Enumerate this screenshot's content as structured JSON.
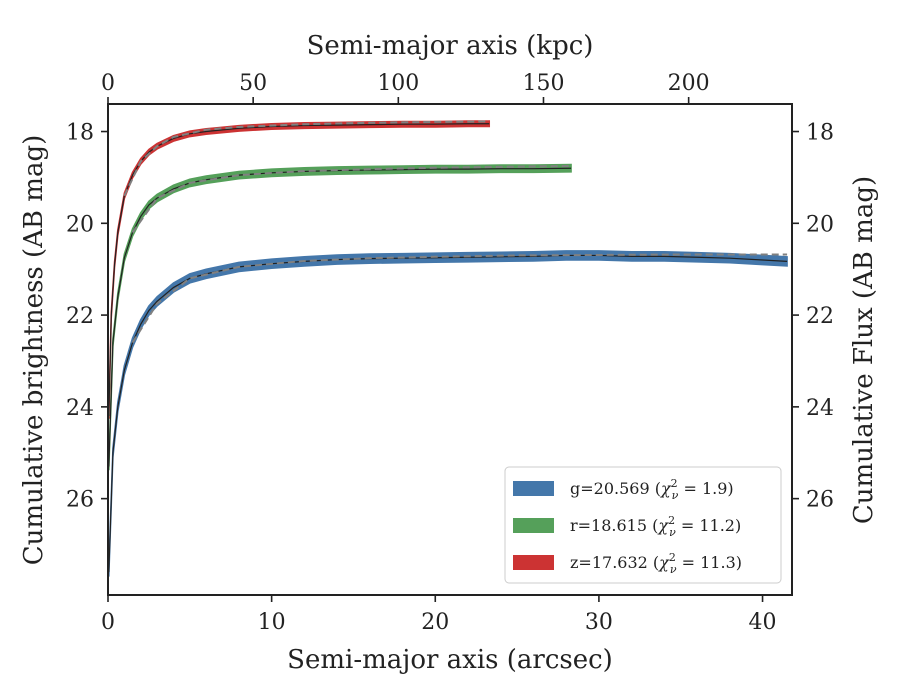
{
  "chart_data": {
    "type": "line",
    "xlabel": "Semi-major axis (arcsec)",
    "x2label": "Semi-major axis (kpc)",
    "ylabel": "Cumulative brightness (AB mag)",
    "y2label": "Cumulative Flux (AB mag)",
    "xlim": [
      0,
      41.8
    ],
    "x2lim": [
      0,
      235.6
    ],
    "ylim": [
      28.1,
      17.4
    ],
    "x_ticks": [
      0,
      10,
      20,
      30,
      40
    ],
    "x2_ticks": [
      0,
      50,
      100,
      150,
      200
    ],
    "y_ticks": [
      18,
      20,
      22,
      24,
      26
    ],
    "grid": false,
    "legend_position": "lower-right",
    "colors": {
      "axis": "#222222",
      "model": "#808080",
      "fit_line": "#222222"
    },
    "series": [
      {
        "name": "g=20.569 ($\\chi^2_\\nu = 1.9$)",
        "band": "g",
        "legend_main": "g=20.569 (",
        "legend_sym": "χ",
        "legend_sup": "2",
        "legend_sub": "ν",
        "legend_tail": " = 1.9)",
        "color": "#4477aa",
        "band_width_mag": 0.1,
        "x": [
          0.05,
          0.3,
          0.6,
          1.0,
          1.5,
          2.0,
          2.5,
          3.0,
          4.0,
          5.0,
          6.0,
          8.0,
          10.0,
          12.0,
          14.0,
          16.0,
          18.0,
          20.0,
          22.0,
          24.0,
          26.0,
          28.0,
          30.0,
          32.0,
          34.0,
          36.0,
          38.0,
          40.0,
          41.5
        ],
        "y": [
          27.6,
          25.0,
          24.0,
          23.2,
          22.6,
          22.2,
          21.9,
          21.7,
          21.4,
          21.2,
          21.1,
          20.95,
          20.88,
          20.83,
          20.79,
          20.77,
          20.76,
          20.75,
          20.74,
          20.73,
          20.72,
          20.7,
          20.7,
          20.72,
          20.72,
          20.74,
          20.76,
          20.8,
          20.83
        ],
        "model_x": [
          1.5,
          3,
          5,
          8,
          12,
          16,
          20,
          25,
          30,
          35,
          40,
          41.5
        ],
        "model_y": [
          22.6,
          21.75,
          21.2,
          20.95,
          20.82,
          20.76,
          20.73,
          20.7,
          20.69,
          20.68,
          20.68,
          20.68
        ]
      },
      {
        "name": "r=18.615 ($\\chi^2_\\nu = 11.2$)",
        "band": "r",
        "legend_main": "r=18.615 (",
        "legend_sym": "χ",
        "legend_sup": "2",
        "legend_sub": "ν",
        "legend_tail": " = 11.2)",
        "color": "#55a05a",
        "band_width_mag": 0.08,
        "x": [
          0.05,
          0.3,
          0.6,
          1.0,
          1.5,
          2.0,
          2.5,
          3.0,
          4.0,
          5.0,
          6.0,
          8.0,
          10.0,
          12.0,
          14.0,
          16.0,
          18.0,
          20.0,
          22.0,
          24.0,
          26.0,
          28.3
        ],
        "y": [
          25.3,
          22.6,
          21.6,
          20.75,
          20.2,
          19.85,
          19.6,
          19.45,
          19.25,
          19.12,
          19.05,
          18.95,
          18.9,
          18.87,
          18.85,
          18.84,
          18.83,
          18.82,
          18.82,
          18.81,
          18.81,
          18.8
        ],
        "model_x": [
          1.5,
          3,
          5,
          8,
          12,
          16,
          20,
          24,
          28.3
        ],
        "model_y": [
          20.2,
          19.45,
          19.12,
          18.95,
          18.86,
          18.82,
          18.79,
          18.77,
          18.75
        ]
      },
      {
        "name": "z=17.632 ($\\chi^2_\\nu = 11.3$)",
        "band": "z",
        "legend_main": "z=17.632 (",
        "legend_sym": "χ",
        "legend_sup": "2",
        "legend_sub": "ν",
        "legend_tail": " = 11.3)",
        "color": "#cc3333",
        "band_width_mag": 0.06,
        "x": [
          0.05,
          0.2,
          0.4,
          0.6,
          1.0,
          1.5,
          2.0,
          2.5,
          3.0,
          4.0,
          5.0,
          6.0,
          8.0,
          10.0,
          12.0,
          14.0,
          16.0,
          18.0,
          20.0,
          22.0,
          23.3
        ],
        "y": [
          24.2,
          22.0,
          20.9,
          20.2,
          19.4,
          18.95,
          18.65,
          18.45,
          18.32,
          18.15,
          18.05,
          18.0,
          17.93,
          17.89,
          17.87,
          17.86,
          17.85,
          17.84,
          17.84,
          17.83,
          17.83
        ],
        "model_x": [
          1.0,
          2,
          3,
          4,
          6,
          8,
          12,
          16,
          20,
          23.3
        ],
        "model_y": [
          19.4,
          18.65,
          18.32,
          18.12,
          17.96,
          17.9,
          17.84,
          17.81,
          17.79,
          17.78
        ]
      }
    ]
  }
}
